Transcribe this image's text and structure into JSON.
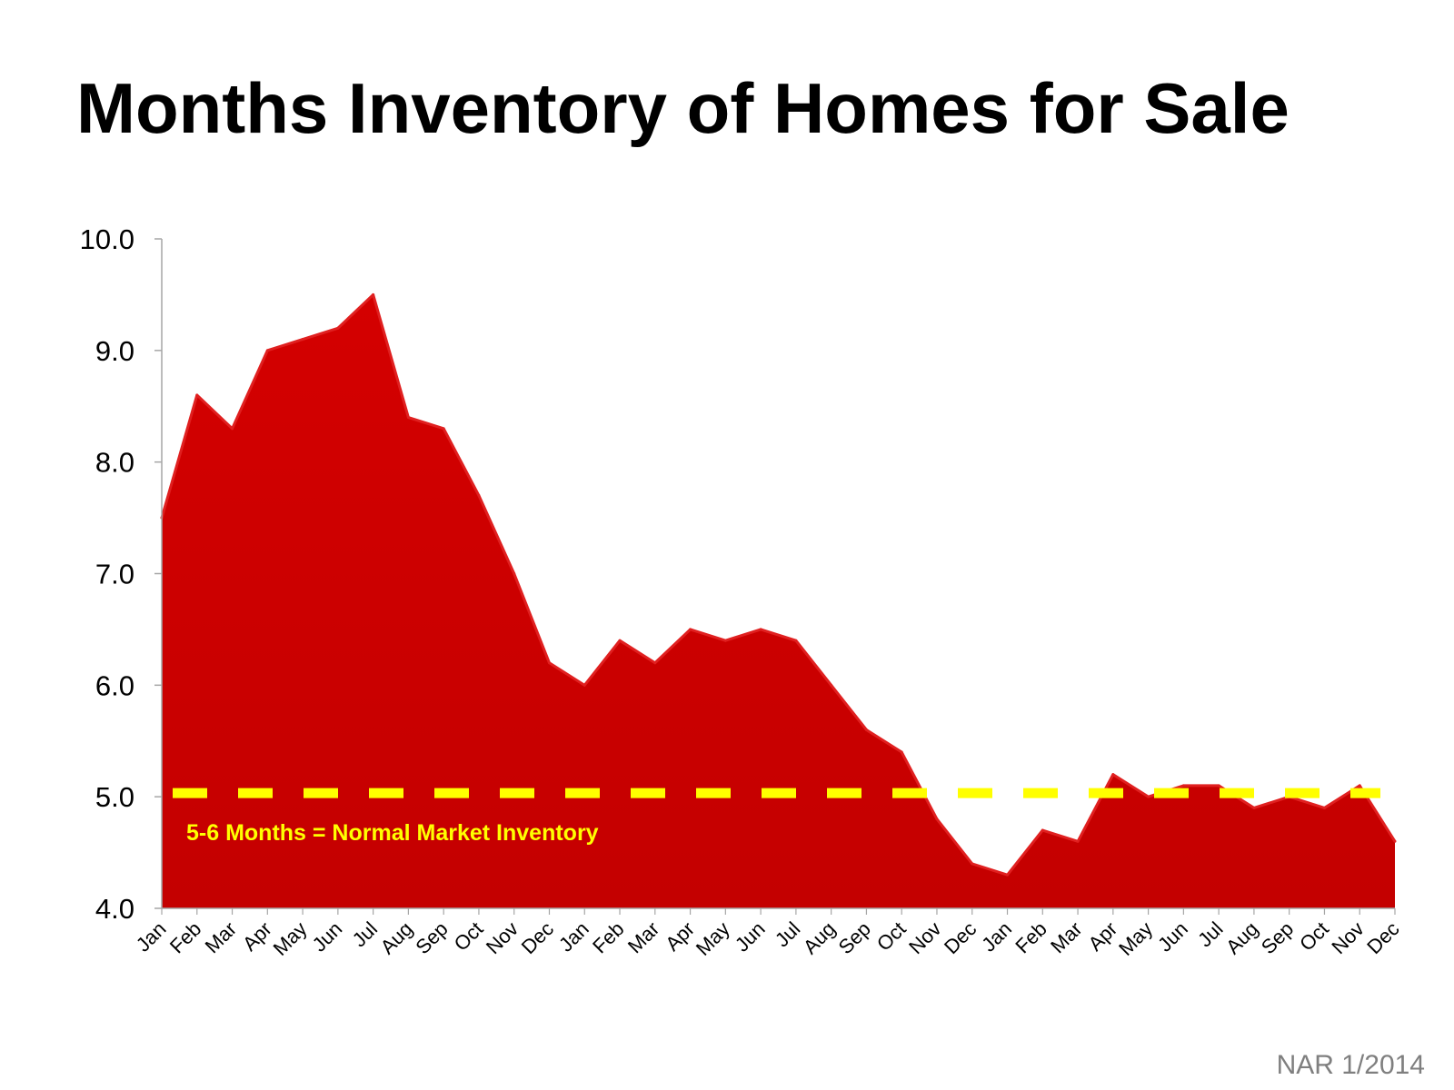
{
  "title": "Months Inventory of Homes for Sale",
  "source": "NAR 1/2014",
  "colors": {
    "area_fill": "#cc0000",
    "area_edge": "#e02020",
    "reference_line": "#ffff00",
    "reference_label": "#ffff00",
    "axis": "#a6a6a6",
    "text": "#000000"
  },
  "chart_data": {
    "type": "area",
    "title": "Months Inventory of Homes for Sale",
    "xlabel": "",
    "ylabel": "",
    "ylim": [
      4.0,
      10.0
    ],
    "yticks": [
      "4.0",
      "5.0",
      "6.0",
      "7.0",
      "8.0",
      "9.0",
      "10.0"
    ],
    "grid": false,
    "categories": [
      "Jan",
      "Feb",
      "Mar",
      "Apr",
      "May",
      "Jun",
      "Jul",
      "Aug",
      "Sep",
      "Oct",
      "Nov",
      "Dec",
      "Jan",
      "Feb",
      "Mar",
      "Apr",
      "May",
      "Jun",
      "Jul",
      "Aug",
      "Sep",
      "Oct",
      "Nov",
      "Dec",
      "Jan",
      "Feb",
      "Mar",
      "Apr",
      "May",
      "Jun",
      "Jul",
      "Aug",
      "Sep",
      "Oct",
      "Nov",
      "Dec"
    ],
    "values": [
      7.5,
      8.6,
      8.3,
      9.0,
      9.1,
      9.2,
      9.5,
      8.4,
      8.3,
      7.7,
      7.0,
      6.2,
      6.0,
      6.4,
      6.2,
      6.5,
      6.4,
      6.5,
      6.4,
      6.0,
      5.6,
      5.4,
      4.8,
      4.4,
      4.3,
      4.7,
      4.6,
      5.2,
      5.0,
      5.1,
      5.1,
      4.9,
      5.0,
      4.9,
      5.1,
      4.6
    ],
    "reference_line": {
      "value": 5.0,
      "style": "dashed",
      "label": "5-6 Months = Normal Market Inventory"
    }
  }
}
